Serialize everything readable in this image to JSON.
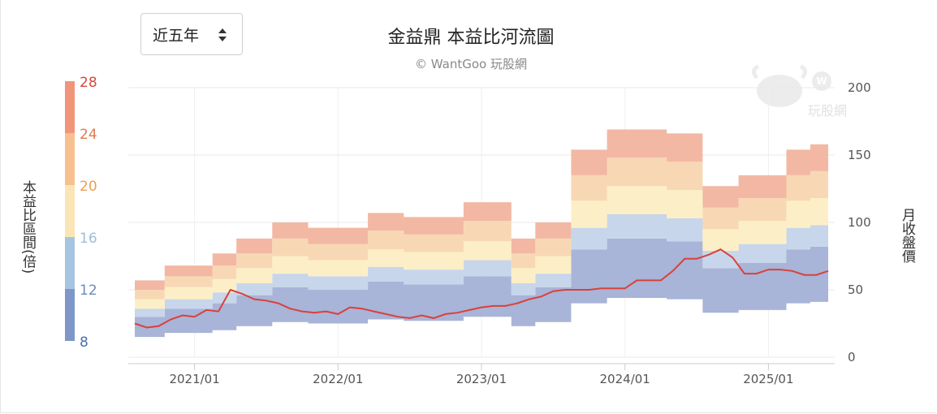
{
  "period_select": {
    "label": "近五年"
  },
  "chart_data": {
    "type": "area",
    "title": "金益鼎 本益比河流圖",
    "subtitle": "© WantGoo 玩股網",
    "ylabel": "本益比區間(倍)",
    "y2label": "月收盤價",
    "watermark": "玩股網",
    "colorbar": {
      "ticks": [
        "28",
        "24",
        "20",
        "16",
        "12",
        "8"
      ],
      "colors": [
        "#f0957a",
        "#f7c08e",
        "#fbe5b6",
        "#a6c5e0",
        "#7e97c8"
      ],
      "tick_colors": [
        "#d44a3c",
        "#e07b52",
        "#eba055",
        "#9fbcd8",
        "#6b8bc0",
        "#4b6fb0"
      ]
    },
    "y_axis": {
      "ticks": [
        "0",
        "50",
        "100",
        "150",
        "200"
      ],
      "range": [
        0,
        200
      ]
    },
    "x_axis": {
      "ticks": [
        "2021/01",
        "2022/01",
        "2023/01",
        "2024/01",
        "2025/01"
      ]
    },
    "band_colors": [
      "#a8b4d8",
      "#c7d6ea",
      "#fcefc7",
      "#f8d8b4",
      "#f2b8a4"
    ],
    "price_color": "#d9413a",
    "x": [
      "2020/08",
      "2020/09",
      "2020/10",
      "2020/11",
      "2020/12",
      "2021/01",
      "2021/02",
      "2021/03",
      "2021/04",
      "2021/05",
      "2021/06",
      "2021/07",
      "2021/08",
      "2021/09",
      "2021/10",
      "2021/11",
      "2021/12",
      "2022/01",
      "2022/02",
      "2022/03",
      "2022/04",
      "2022/05",
      "2022/06",
      "2022/07",
      "2022/08",
      "2022/09",
      "2022/10",
      "2022/11",
      "2022/12",
      "2023/01",
      "2023/02",
      "2023/03",
      "2023/04",
      "2023/05",
      "2023/06",
      "2023/07",
      "2023/08",
      "2023/09",
      "2023/10",
      "2023/11",
      "2023/12",
      "2024/01",
      "2024/02",
      "2024/03",
      "2024/04",
      "2024/05",
      "2024/06",
      "2024/07",
      "2024/08",
      "2024/09",
      "2024/10",
      "2024/11",
      "2024/12",
      "2025/01",
      "2025/02",
      "2025/03",
      "2025/04",
      "2025/05",
      "2025/06"
    ],
    "series": [
      {
        "name": "8倍",
        "values": [
          15,
          15,
          15,
          18,
          18,
          18,
          18,
          20,
          20,
          23,
          23,
          23,
          26,
          26,
          26,
          25,
          25,
          25,
          25,
          25,
          28,
          28,
          28,
          27,
          27,
          27,
          27,
          27,
          30,
          30,
          30,
          30,
          23,
          23,
          26,
          26,
          26,
          40,
          40,
          40,
          44,
          44,
          44,
          44,
          44,
          43,
          43,
          43,
          33,
          33,
          33,
          35,
          35,
          35,
          35,
          40,
          40,
          41,
          41
        ]
      },
      {
        "name": "12倍",
        "values": [
          30,
          30,
          30,
          36,
          36,
          36,
          36,
          40,
          40,
          46,
          46,
          46,
          52,
          52,
          52,
          50,
          50,
          50,
          50,
          50,
          56,
          56,
          56,
          54,
          54,
          54,
          54,
          54,
          60,
          60,
          60,
          60,
          46,
          46,
          52,
          52,
          52,
          80,
          80,
          80,
          88,
          88,
          88,
          88,
          88,
          86,
          86,
          86,
          66,
          66,
          66,
          70,
          70,
          70,
          70,
          80,
          80,
          82,
          82
        ]
      },
      {
        "name": "16倍",
        "values": [
          36,
          36,
          36,
          43,
          43,
          43,
          43,
          48,
          48,
          55,
          55,
          55,
          62,
          62,
          62,
          60,
          60,
          60,
          60,
          60,
          67,
          67,
          67,
          65,
          65,
          65,
          65,
          65,
          72,
          72,
          72,
          72,
          55,
          55,
          62,
          62,
          62,
          96,
          96,
          96,
          106,
          106,
          106,
          106,
          106,
          103,
          103,
          103,
          79,
          79,
          79,
          84,
          84,
          84,
          84,
          96,
          96,
          98,
          98
        ]
      },
      {
        "name": "20倍",
        "values": [
          43,
          43,
          43,
          52,
          52,
          52,
          52,
          58,
          58,
          66,
          66,
          66,
          75,
          75,
          75,
          72,
          72,
          72,
          72,
          72,
          80,
          80,
          80,
          78,
          78,
          78,
          78,
          78,
          86,
          86,
          86,
          86,
          66,
          66,
          75,
          75,
          75,
          116,
          116,
          116,
          127,
          127,
          127,
          127,
          127,
          124,
          124,
          124,
          95,
          95,
          95,
          101,
          101,
          101,
          101,
          116,
          116,
          118,
          118
        ]
      },
      {
        "name": "24倍",
        "values": [
          50,
          50,
          50,
          60,
          60,
          60,
          60,
          68,
          68,
          77,
          77,
          77,
          88,
          88,
          88,
          84,
          84,
          84,
          84,
          84,
          94,
          94,
          94,
          91,
          91,
          91,
          91,
          91,
          101,
          101,
          101,
          101,
          77,
          77,
          88,
          88,
          88,
          135,
          135,
          135,
          148,
          148,
          148,
          148,
          148,
          145,
          145,
          145,
          111,
          111,
          111,
          118,
          118,
          118,
          118,
          135,
          135,
          138,
          138
        ]
      },
      {
        "name": "28倍",
        "values": [
          57,
          57,
          57,
          68,
          68,
          68,
          68,
          77,
          77,
          88,
          88,
          88,
          100,
          100,
          100,
          96,
          96,
          96,
          96,
          96,
          107,
          107,
          107,
          104,
          104,
          104,
          104,
          104,
          115,
          115,
          115,
          115,
          88,
          88,
          100,
          100,
          100,
          154,
          154,
          154,
          169,
          169,
          169,
          169,
          169,
          166,
          166,
          166,
          127,
          127,
          127,
          135,
          135,
          135,
          135,
          154,
          154,
          158,
          158
        ]
      },
      {
        "name": "月收盤價",
        "values": [
          25,
          22,
          23,
          28,
          31,
          30,
          35,
          34,
          50,
          47,
          43,
          42,
          40,
          36,
          34,
          33,
          34,
          32,
          37,
          36,
          34,
          32,
          30,
          29,
          31,
          29,
          32,
          33,
          35,
          37,
          38,
          38,
          40,
          43,
          45,
          49,
          50,
          50,
          50,
          51,
          51,
          51,
          57,
          57,
          57,
          64,
          73,
          73,
          76,
          80,
          74,
          62,
          62,
          65,
          65,
          64,
          61,
          61,
          64
        ]
      }
    ]
  }
}
